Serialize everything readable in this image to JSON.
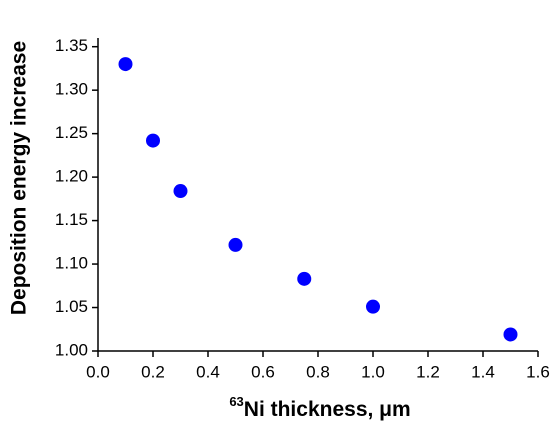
{
  "chart_data": {
    "type": "scatter",
    "xlabel": {
      "superscript": "63",
      "text": "Ni thickness, μm"
    },
    "ylabel": "Deposition energy increase",
    "series": [
      {
        "color": "#0000ff",
        "x": [
          0.1,
          0.2,
          0.3,
          0.5,
          0.75,
          1.0,
          1.5
        ],
        "values": [
          1.33,
          1.242,
          1.184,
          1.122,
          1.083,
          1.051,
          1.019
        ]
      }
    ],
    "xlim": [
      0,
      1.6
    ],
    "ylim": [
      1.0,
      1.36
    ],
    "xticks": [
      {
        "value": 0,
        "label": "0.0"
      },
      0.2,
      0.4,
      0.6,
      0.8,
      {
        "value": 1,
        "label": "1.0"
      },
      1.2,
      1.4,
      1.6
    ],
    "yticks": [
      {
        "value": 1,
        "label": "1.00"
      },
      1.05,
      {
        "value": 1.1,
        "label": "1.10"
      },
      1.15,
      {
        "value": 1.2,
        "label": "1.20"
      },
      1.25,
      {
        "value": 1.3,
        "label": "1.30"
      },
      1.35
    ]
  }
}
